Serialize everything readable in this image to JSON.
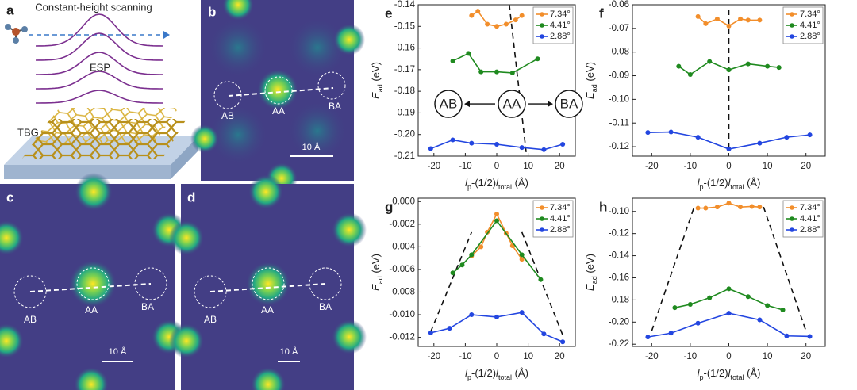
{
  "panels": {
    "a": {
      "letter": "a",
      "title": "Constant-height scanning",
      "esp": "ESP",
      "substrate": "TBG"
    },
    "b": {
      "letter": "b",
      "sites": [
        "AB",
        "AA",
        "BA"
      ],
      "scale": "10 Å"
    },
    "c": {
      "letter": "c",
      "sites": [
        "AB",
        "AA",
        "BA"
      ],
      "scale": "10 Å"
    },
    "d": {
      "letter": "d",
      "sites": [
        "AB",
        "AA",
        "BA"
      ],
      "scale": "10 Å"
    }
  },
  "chart_data": [
    {
      "type": "line",
      "panel": "e",
      "x_label_parts": [
        "l",
        "p",
        "-(1/2)",
        "l",
        "total",
        " (Å)"
      ],
      "y_label_parts": [
        "E",
        "ad",
        " (eV)"
      ],
      "xlim": [
        -25,
        25
      ],
      "xticks": [
        -20,
        -10,
        0,
        10,
        20
      ],
      "ylim": [
        -0.21,
        -0.14
      ],
      "yticks": [
        -0.14,
        -0.15,
        -0.16,
        -0.17,
        -0.18,
        -0.19,
        {
          "value": -0.2,
          "label": "-0.20"
        },
        -0.21
      ],
      "legend": "upper right",
      "series": [
        {
          "name": "7.34°",
          "color": "#f28e2b",
          "x": [
            -8,
            -6,
            -3,
            0,
            3,
            6,
            8
          ],
          "values": [
            -0.145,
            -0.143,
            -0.149,
            -0.15,
            -0.149,
            -0.147,
            -0.145
          ]
        },
        {
          "name": "4.41°",
          "color": "#1f8a1f",
          "x": [
            -14,
            -9,
            -5,
            0,
            5,
            13
          ],
          "values": [
            -0.166,
            -0.1625,
            -0.171,
            -0.171,
            -0.1715,
            -0.165
          ]
        },
        {
          "name": "2.88°",
          "color": "#2346e0",
          "x": [
            -21,
            -14,
            -8,
            0,
            8,
            15,
            21
          ],
          "values": [
            -0.2065,
            -0.2025,
            -0.204,
            -0.2045,
            -0.206,
            -0.207,
            -0.2045
          ]
        }
      ],
      "guides": [
        {
          "x": [
            4,
            9.5
          ],
          "y": [
            -0.14,
            -0.21
          ]
        }
      ],
      "annotations": [
        "AB",
        "AA",
        "BA"
      ]
    },
    {
      "type": "line",
      "panel": "f",
      "x_label_parts": [
        "l",
        "p",
        "-(1/2)",
        "l",
        "total",
        " (Å)"
      ],
      "y_label_parts": [
        "E",
        "ad",
        " (eV)"
      ],
      "xlim": [
        -25,
        25
      ],
      "xticks": [
        -20,
        -10,
        0,
        10,
        20
      ],
      "ylim": [
        -0.124,
        -0.06
      ],
      "yticks": [
        -0.06,
        -0.07,
        -0.08,
        -0.09,
        {
          "value": -0.1,
          "label": "-0.10"
        },
        -0.11,
        -0.12
      ],
      "legend": "upper right",
      "series": [
        {
          "name": "7.34°",
          "color": "#f28e2b",
          "x": [
            -8,
            -6,
            -3,
            0,
            3,
            5,
            8
          ],
          "values": [
            -0.065,
            -0.068,
            -0.066,
            -0.069,
            -0.066,
            -0.0665,
            -0.0665
          ]
        },
        {
          "name": "4.41°",
          "color": "#1f8a1f",
          "x": [
            -13,
            -10,
            -5,
            0,
            5,
            10,
            13
          ],
          "values": [
            -0.086,
            -0.0895,
            -0.084,
            -0.0875,
            -0.085,
            -0.086,
            -0.0865
          ]
        },
        {
          "name": "2.88°",
          "color": "#2346e0",
          "x": [
            -21,
            -15,
            -8,
            0,
            8,
            15,
            21
          ],
          "values": [
            -0.114,
            -0.1138,
            -0.116,
            -0.121,
            -0.1185,
            -0.116,
            -0.115
          ]
        }
      ],
      "guides": [
        {
          "x": [
            0,
            0
          ],
          "y": [
            -0.062,
            -0.121
          ]
        }
      ]
    },
    {
      "type": "line",
      "panel": "g",
      "x_label_parts": [
        "l",
        "p",
        "-(1/2)",
        "l",
        "total",
        " (Å)"
      ],
      "y_label_parts": [
        "E",
        "ad",
        " (eV)"
      ],
      "xlim": [
        -25,
        25
      ],
      "xticks": [
        -20,
        -10,
        0,
        10,
        20
      ],
      "ylim": [
        -0.0128,
        0.0003
      ],
      "yticks": [
        {
          "value": 0,
          "label": "0.000"
        },
        -0.002,
        -0.004,
        -0.006,
        -0.008,
        {
          "value": -0.01,
          "label": "-0.010"
        },
        -0.012
      ],
      "legend": "upper right",
      "series": [
        {
          "name": "7.34°",
          "color": "#f28e2b",
          "x": [
            -8,
            -5,
            -3,
            0,
            3,
            5,
            8
          ],
          "values": [
            -0.0048,
            -0.004,
            -0.0027,
            -0.0011,
            -0.0028,
            -0.0039,
            -0.0051
          ]
        },
        {
          "name": "4.41°",
          "color": "#1f8a1f",
          "x": [
            -14,
            -11,
            -8,
            0,
            8,
            14
          ],
          "values": [
            -0.0063,
            -0.0056,
            -0.0047,
            -0.0017,
            -0.0047,
            -0.0069
          ]
        },
        {
          "name": "2.88°",
          "color": "#2346e0",
          "x": [
            -21,
            -15,
            -8,
            0,
            8,
            15,
            21
          ],
          "values": [
            -0.0116,
            -0.0112,
            -0.01,
            -0.0102,
            -0.0098,
            -0.0117,
            -0.0124
          ]
        }
      ],
      "guides": [
        {
          "x": [
            -21,
            -8
          ],
          "y": [
            -0.0115,
            -0.0027
          ]
        },
        {
          "x": [
            8,
            21
          ],
          "y": [
            -0.0027,
            -0.0118
          ]
        }
      ]
    },
    {
      "type": "line",
      "panel": "h",
      "x_label_parts": [
        "l",
        "p",
        "-(1/2)",
        "l",
        "total",
        " (Å)"
      ],
      "y_label_parts": [
        "E",
        "ad",
        " (eV)"
      ],
      "xlim": [
        -25,
        25
      ],
      "xticks": [
        -20,
        -10,
        0,
        10,
        20
      ],
      "ylim": [
        -0.222,
        -0.088
      ],
      "yticks": [
        {
          "value": -0.1,
          "label": "-0.10"
        },
        -0.12,
        -0.14,
        -0.16,
        -0.18,
        {
          "value": -0.2,
          "label": "-0.20"
        },
        -0.22
      ],
      "legend": "upper right",
      "series": [
        {
          "name": "7.34°",
          "color": "#f28e2b",
          "x": [
            -8,
            -6,
            -3,
            0,
            3,
            6,
            8
          ],
          "values": [
            -0.097,
            -0.097,
            -0.096,
            -0.0925,
            -0.096,
            -0.0955,
            -0.096
          ]
        },
        {
          "name": "4.41°",
          "color": "#1f8a1f",
          "x": [
            -14,
            -10,
            -5,
            0,
            5,
            10,
            14
          ],
          "values": [
            -0.187,
            -0.184,
            -0.178,
            -0.17,
            -0.177,
            -0.185,
            -0.189
          ]
        },
        {
          "name": "2.88°",
          "color": "#2346e0",
          "x": [
            -21,
            -15,
            -8,
            0,
            8,
            15,
            21
          ],
          "values": [
            -0.2135,
            -0.21,
            -0.201,
            -0.192,
            -0.198,
            -0.2125,
            -0.213
          ]
        }
      ],
      "guides": [
        {
          "x": [
            -20,
            -9
          ],
          "y": [
            -0.208,
            -0.096
          ]
        },
        {
          "x": [
            9,
            20
          ],
          "y": [
            -0.096,
            -0.208
          ]
        }
      ]
    }
  ]
}
